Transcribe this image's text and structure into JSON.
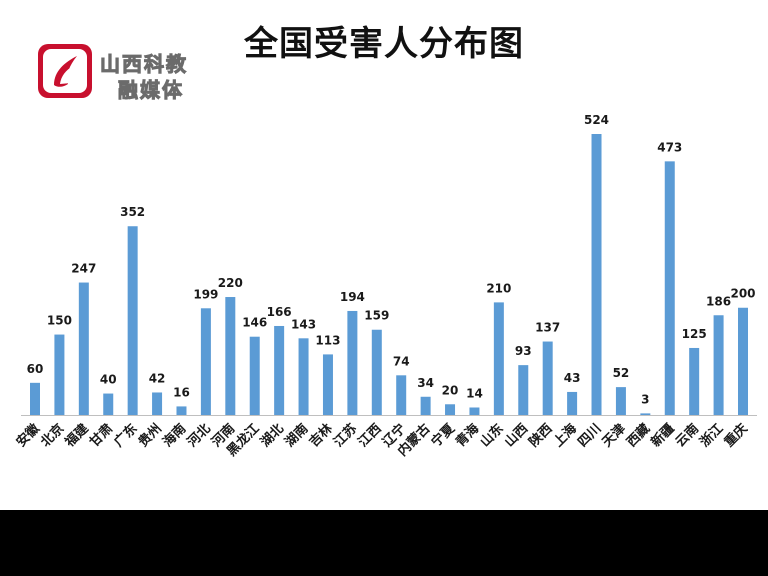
{
  "logo": {
    "line1": "山西科教",
    "line2": "融媒体",
    "brand_color": "#c8102e"
  },
  "chart_data": {
    "type": "bar",
    "title": "全国受害人分布图",
    "xlabel": "",
    "ylabel": "",
    "ylim": [
      0,
      560
    ],
    "grid": false,
    "legend": "none",
    "bar_color": "#5b9bd5",
    "categories": [
      "安徽",
      "北京",
      "福建",
      "甘肃",
      "广东",
      "贵州",
      "海南",
      "河北",
      "河南",
      "黑龙江",
      "湖北",
      "湖南",
      "吉林",
      "江苏",
      "江西",
      "辽宁",
      "内蒙古",
      "宁夏",
      "青海",
      "山东",
      "山西",
      "陕西",
      "上海",
      "四川",
      "天津",
      "西藏",
      "新疆",
      "云南",
      "浙江",
      "重庆"
    ],
    "values": [
      60,
      150,
      247,
      40,
      352,
      42,
      16,
      199,
      220,
      146,
      166,
      143,
      113,
      194,
      159,
      74,
      34,
      20,
      14,
      210,
      93,
      137,
      43,
      524,
      52,
      3,
      473,
      125,
      186,
      200
    ]
  }
}
